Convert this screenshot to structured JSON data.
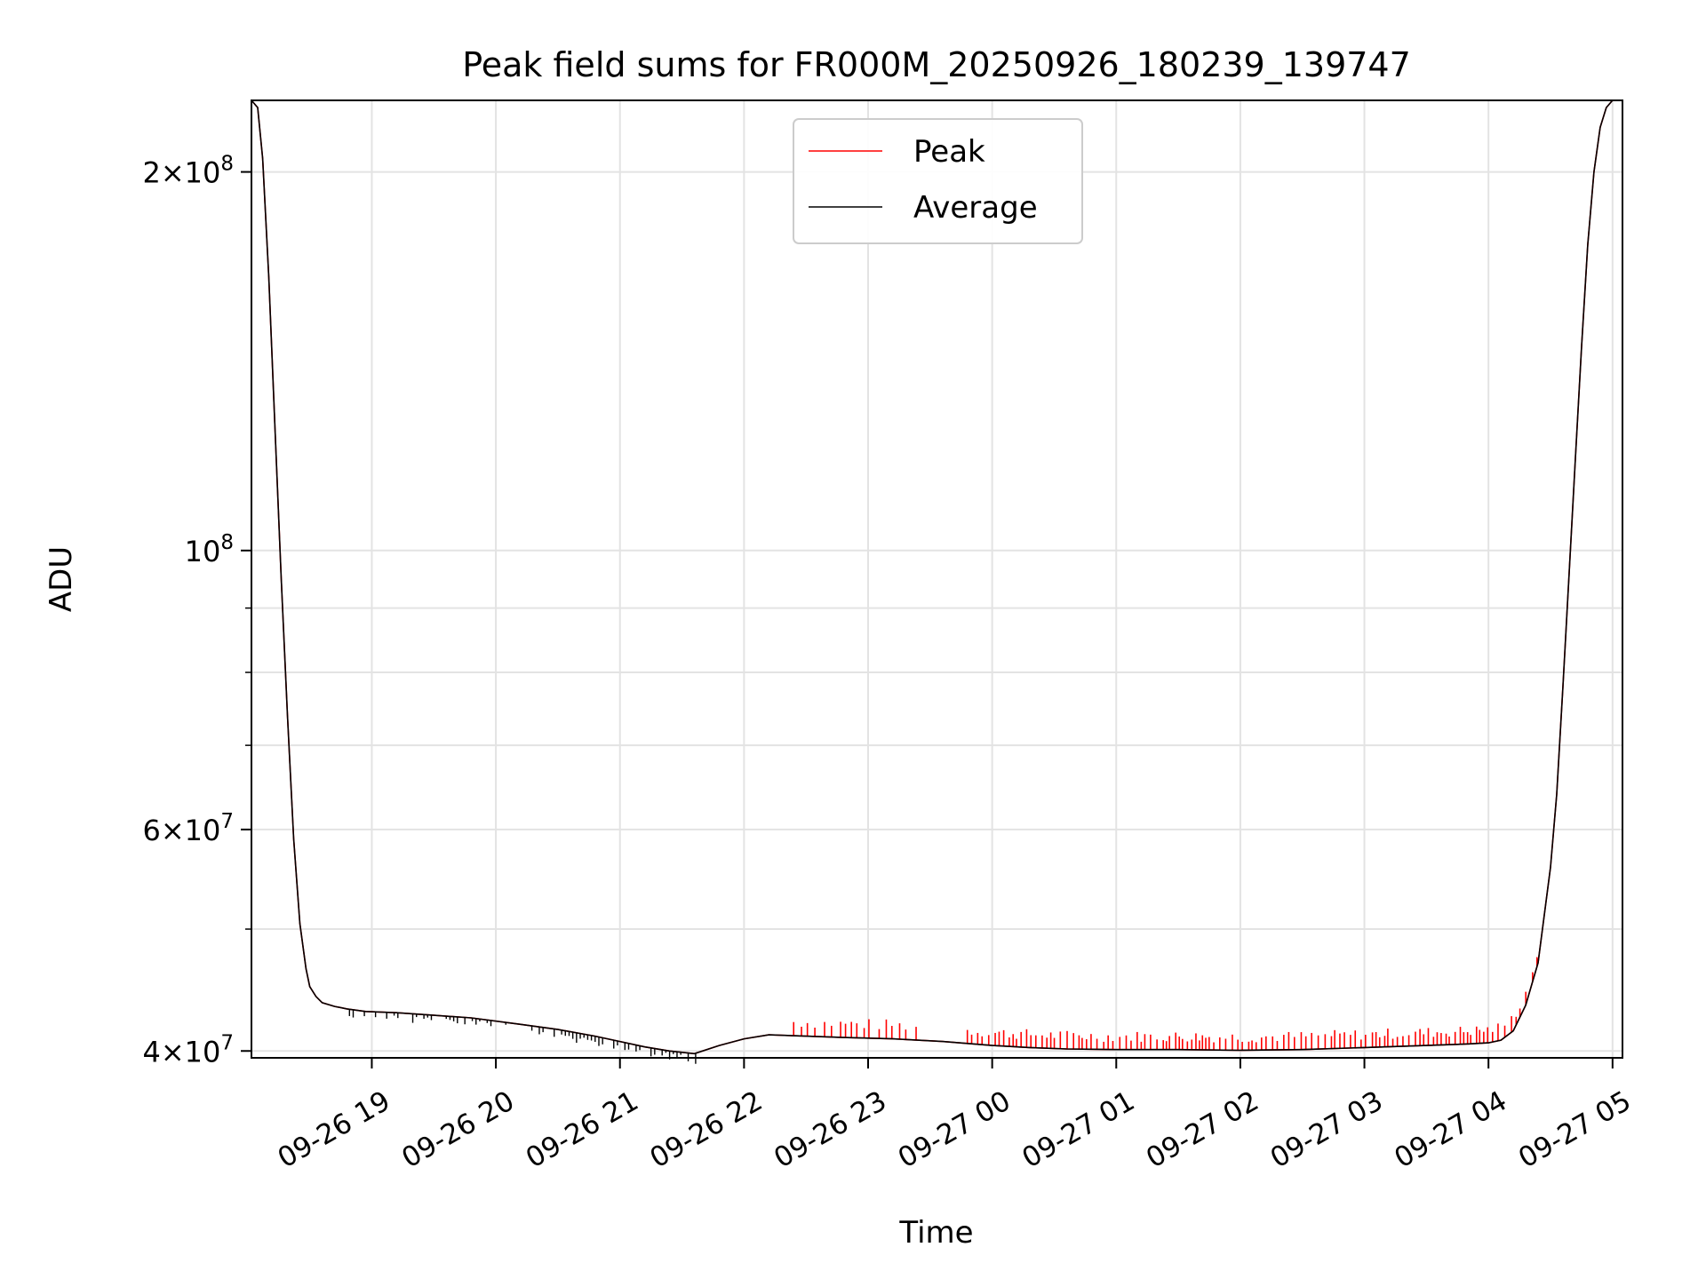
{
  "chart_data": {
    "type": "line",
    "title": "Peak field sums for FR000M_20250926_180239_139747",
    "xlabel": "Time",
    "ylabel": "ADU",
    "yscale": "log",
    "grid": true,
    "legend_position": "top-center",
    "xlim_hours": [
      18.03,
      29.08
    ],
    "ylim": [
      39500000,
      228000000
    ],
    "x_ticks": [
      {
        "value": 19,
        "label": "09-26 19"
      },
      {
        "value": 20,
        "label": "09-26 20"
      },
      {
        "value": 21,
        "label": "09-26 21"
      },
      {
        "value": 22,
        "label": "09-26 22"
      },
      {
        "value": 23,
        "label": "09-26 23"
      },
      {
        "value": 24,
        "label": "09-27 00"
      },
      {
        "value": 25,
        "label": "09-27 01"
      },
      {
        "value": 26,
        "label": "09-27 02"
      },
      {
        "value": 27,
        "label": "09-27 03"
      },
      {
        "value": 28,
        "label": "09-27 04"
      },
      {
        "value": 29,
        "label": "09-27 05"
      }
    ],
    "y_ticks_major": [
      {
        "value": 40000000,
        "mant": "4",
        "exp": "7"
      },
      {
        "value": 60000000,
        "mant": "6",
        "exp": "7"
      },
      {
        "value": 100000000,
        "mant": "",
        "exp": "8"
      },
      {
        "value": 200000000,
        "mant": "2",
        "exp": "8"
      }
    ],
    "y_ticks_minor": [
      50000000,
      70000000,
      80000000,
      90000000
    ],
    "series": [
      {
        "name": "Average",
        "color": "#000000",
        "x": [
          18.03,
          18.08,
          18.12,
          18.17,
          18.22,
          18.27,
          18.32,
          18.37,
          18.42,
          18.47,
          18.5,
          18.55,
          18.6,
          18.7,
          18.8,
          18.95,
          19.2,
          19.5,
          19.8,
          20.2,
          20.5,
          20.8,
          21.0,
          21.2,
          21.4,
          21.6,
          21.8,
          22.0,
          22.2,
          22.5,
          22.8,
          23.2,
          23.6,
          24.0,
          24.3,
          24.6,
          25.0,
          25.5,
          26.0,
          26.5,
          27.0,
          27.5,
          27.8,
          28.0,
          28.1,
          28.2,
          28.3,
          28.4,
          28.5,
          28.55,
          28.6,
          28.65,
          28.7,
          28.75,
          28.8,
          28.85,
          28.9,
          28.95,
          29.0,
          29.03,
          29.08
        ],
        "y": [
          228000000,
          225000000,
          205000000,
          165000000,
          125000000,
          95000000,
          74000000,
          59000000,
          50500000,
          46500000,
          45000000,
          44200000,
          43700000,
          43400000,
          43200000,
          43000000,
          42900000,
          42700000,
          42500000,
          42000000,
          41600000,
          41100000,
          40700000,
          40300000,
          40000000,
          39800000,
          40400000,
          40900000,
          41200000,
          41100000,
          41000000,
          40900000,
          40700000,
          40400000,
          40250000,
          40150000,
          40100000,
          40100000,
          40050000,
          40100000,
          40250000,
          40400000,
          40500000,
          40600000,
          40800000,
          41500000,
          43500000,
          47000000,
          56000000,
          64000000,
          78000000,
          96000000,
          118000000,
          145000000,
          175000000,
          200000000,
          217000000,
          225000000,
          228000000,
          228000000,
          228000000
        ]
      },
      {
        "name": "Peak",
        "color": "#ff0000",
        "x": [
          18.03,
          18.08,
          18.12,
          18.17,
          18.22,
          18.27,
          18.32,
          18.37,
          18.42,
          18.47,
          18.5,
          18.55,
          18.6,
          18.7,
          18.8,
          18.95,
          19.2,
          19.5,
          19.8,
          20.2,
          20.5,
          20.8,
          21.0,
          21.2,
          21.4,
          21.6,
          21.8,
          22.0,
          22.2,
          22.5,
          22.8,
          23.2,
          23.6,
          24.0,
          24.3,
          24.6,
          25.0,
          25.5,
          26.0,
          26.5,
          27.0,
          27.5,
          27.8,
          28.0,
          28.1,
          28.2,
          28.3,
          28.4,
          28.5,
          28.55,
          28.6,
          28.65,
          28.7,
          28.75,
          28.8,
          28.85,
          28.9,
          28.95,
          29.0,
          29.03,
          29.08
        ],
        "y": [
          228000000,
          225000000,
          205000000,
          165000000,
          125000000,
          95000000,
          74000000,
          59000000,
          50500000,
          46500000,
          45000000,
          44200000,
          43700000,
          43400000,
          43200000,
          43000000,
          42900000,
          42700000,
          42500000,
          42000000,
          41600000,
          41100000,
          40700000,
          40300000,
          40000000,
          39800000,
          40400000,
          40900000,
          41200000,
          41100000,
          41000000,
          40900000,
          40700000,
          40400000,
          40250000,
          40150000,
          40100000,
          40100000,
          40050000,
          40100000,
          40250000,
          40400000,
          40500000,
          40600000,
          40800000,
          41500000,
          43500000,
          47000000,
          56000000,
          64000000,
          78000000,
          96000000,
          118000000,
          145000000,
          175000000,
          200000000,
          217000000,
          225000000,
          228000000,
          228000000,
          228000000
        ],
        "spike_regions": [
          {
            "from": 22.4,
            "to": 23.4,
            "amplitude": 1500000,
            "spacing": 0.06
          },
          {
            "from": 23.8,
            "to": 28.4,
            "amplitude": 1400000,
            "spacing": 0.04
          }
        ]
      }
    ]
  },
  "legend": {
    "items": [
      {
        "label": "Peak",
        "color": "#ff0000"
      },
      {
        "label": "Average",
        "color": "#000000"
      }
    ]
  }
}
